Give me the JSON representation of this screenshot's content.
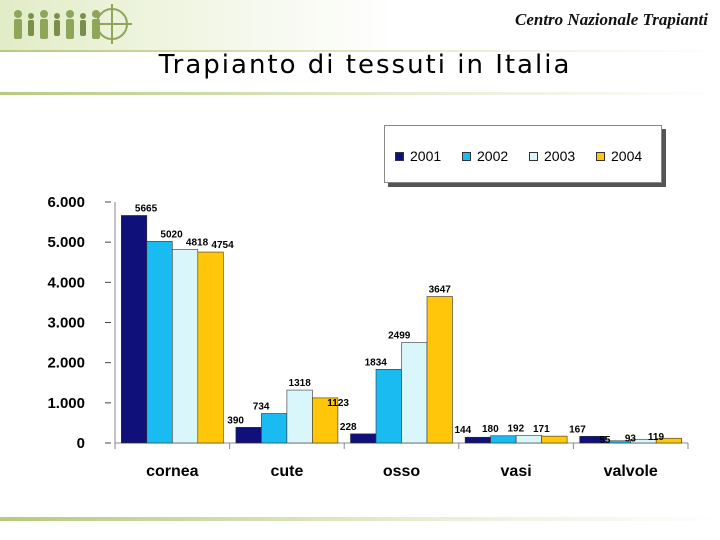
{
  "header": {
    "org_name": "Centro Nazionale Trapianti"
  },
  "slide": {
    "title": "Trapianto di tessuti in Italia"
  },
  "colors": {
    "2001": "#10107a",
    "2002": "#19bbf0",
    "2003": "#d9f6fb",
    "2004": "#ffc60a",
    "accent_green": "#b8c97e"
  },
  "chart_data": {
    "type": "bar",
    "categories": [
      "cornea",
      "cute",
      "osso",
      "vasi",
      "valvole"
    ],
    "series": [
      {
        "name": "2001",
        "values": [
          5665,
          390,
          228,
          144,
          167
        ]
      },
      {
        "name": "2002",
        "values": [
          5020,
          734,
          1834,
          180,
          55
        ]
      },
      {
        "name": "2003",
        "values": [
          4818,
          1318,
          2499,
          192,
          93
        ]
      },
      {
        "name": "2004",
        "values": [
          4754,
          1123,
          3647,
          171,
          119
        ]
      }
    ],
    "title": "",
    "xlabel": "",
    "ylabel": "",
    "ylim": [
      0,
      6000
    ],
    "yticks": [
      0,
      1000,
      2000,
      3000,
      4000,
      5000,
      6000
    ],
    "ytick_labels": [
      "0",
      "1.000",
      "2.000",
      "3.000",
      "4.000",
      "5.000",
      "6.000"
    ],
    "value_labels": [
      [
        "5665",
        "5020",
        "4818",
        "4754"
      ],
      [
        "390",
        "734",
        "1318",
        "1123"
      ],
      [
        "228",
        "1834",
        "2499",
        "3647"
      ],
      [
        "144",
        "180",
        "192",
        "171"
      ],
      [
        "167",
        "55",
        "93",
        "119"
      ]
    ],
    "legend_position": "top-right",
    "grid": false
  }
}
